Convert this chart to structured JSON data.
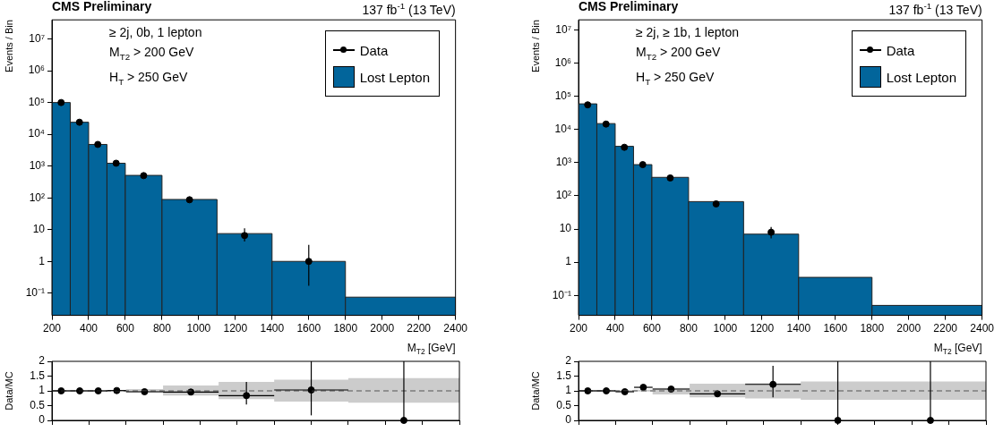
{
  "chart_data": [
    {
      "type": "histogram",
      "title": "CMS Preliminary",
      "subtitle": "137 fb$^{-1}$ (13 TeV)",
      "xlabel": "M$_{T2}$ [GeV]",
      "ylabel": "Events / Bin",
      "annotations": [
        "≥ 2j, 0b, 1 lepton",
        "M$_{T2}$ > 200 GeV",
        "H$_{T}$ > 250 GeV"
      ],
      "log": "y",
      "legend": "top right",
      "xlim": [
        200,
        2400
      ],
      "xticks": [
        200,
        400,
        600,
        800,
        1000,
        1200,
        1400,
        1600,
        1800,
        2000,
        2200,
        2400
      ],
      "ylim": [
        0.02,
        40000000
      ],
      "yticks": [
        {
          "value": 0.1,
          "label": "10⁻¹"
        },
        1,
        10,
        {
          "value": 100,
          "label": "10²"
        },
        {
          "value": 1000,
          "label": "10³"
        },
        {
          "value": 10000,
          "label": "10⁴"
        },
        {
          "value": 100000,
          "label": "10⁵"
        },
        {
          "value": 1000000,
          "label": "10⁶"
        },
        {
          "value": 10000000,
          "label": "10⁷"
        }
      ],
      "series": [
        {
          "type": "scatter",
          "marker": "circle",
          "name": "Data",
          "color": "#000000",
          "x": [
            250,
            350,
            450,
            550,
            700,
            950,
            1250,
            1600
          ],
          "values": [
            100000,
            24000,
            4800,
            1230,
            500,
            87,
            6.5,
            1.0
          ],
          "errors": [
            null,
            null,
            null,
            null,
            null,
            null,
            [
              4.2,
              11
            ],
            [
              0.17,
              3.3
            ]
          ]
        },
        {
          "name": "Lost Lepton",
          "color": "#02659b",
          "bins": [
            200,
            300,
            400,
            500,
            600,
            800,
            1100,
            1400,
            1800,
            2400
          ],
          "values": [
            100000,
            24000,
            4800,
            1230,
            510,
            89,
            7.5,
            1.0,
            0.075
          ]
        }
      ]
    },
    {
      "type": "histogram",
      "title": "CMS Preliminary",
      "subtitle": "137 fb$^{-1}$ (13 TeV)",
      "xlabel": "M$_{T2}$ [GeV]",
      "ylabel": "Events / Bin",
      "annotations": [
        "≥ 2j, ≥ 1b, 1 lepton",
        "M$_{T2}$ > 200 GeV",
        "H$_{T}$ > 250 GeV"
      ],
      "log": "y",
      "legend": "top right",
      "xlim": [
        200,
        2400
      ],
      "xticks": [
        200,
        400,
        600,
        800,
        1000,
        1200,
        1400,
        1600,
        1800,
        2000,
        2200,
        2400
      ],
      "ylim": [
        0.025,
        20000000
      ],
      "yticks": [
        {
          "value": 0.1,
          "label": "10⁻¹"
        },
        1,
        10,
        {
          "value": 100,
          "label": "10²"
        },
        {
          "value": 1000,
          "label": "10³"
        },
        {
          "value": 10000,
          "label": "10⁴"
        },
        {
          "value": 100000,
          "label": "10⁵"
        },
        {
          "value": 1000000,
          "label": "10⁶"
        },
        {
          "value": 10000000,
          "label": "10⁷"
        }
      ],
      "series": [
        {
          "type": "scatter",
          "marker": "circle",
          "name": "Data",
          "color": "#000000",
          "x": [
            250,
            350,
            450,
            550,
            700,
            950,
            1250
          ],
          "values": [
            55000,
            14500,
            2900,
            870,
            345,
            57,
            8
          ],
          "errors": [
            null,
            null,
            null,
            null,
            null,
            null,
            [
              5.2,
              11.5
            ]
          ]
        },
        {
          "name": "Lost Lepton",
          "color": "#02659b",
          "bins": [
            200,
            300,
            400,
            500,
            600,
            800,
            1100,
            1400,
            1800,
            2400
          ],
          "values": [
            59000,
            15000,
            3100,
            870,
            360,
            67,
            7,
            0.35,
            0.05
          ]
        }
      ]
    },
    {
      "type": "scatter",
      "ylabel": "Data/MC",
      "tick_labels": "y",
      "xlim": [
        200,
        2400
      ],
      "xticks": [
        200,
        400,
        600,
        800,
        1000,
        1200,
        1400,
        1600,
        1800,
        2000,
        2200,
        2400
      ],
      "ylim": [
        0,
        2
      ],
      "yticks": [
        0,
        0.5,
        1,
        1.5,
        2
      ],
      "series": [
        {
          "type": "step",
          "marker": "none",
          "color": "#555555",
          "line_style": "dashed",
          "x": [
            200,
            300,
            400,
            500,
            600,
            800,
            1100,
            1400,
            1800,
            2400
          ],
          "values": [
            1,
            1,
            1,
            1,
            1,
            1,
            1,
            1,
            1,
            1
          ],
          "lower": [
            0.98,
            0.98,
            0.98,
            0.98,
            0.94,
            0.84,
            0.72,
            0.64,
            0.6,
            0.6
          ],
          "upper": [
            1.02,
            1.02,
            1.02,
            1.02,
            1.06,
            1.18,
            1.3,
            1.38,
            1.43,
            1.43
          ]
        },
        {
          "marker": "circle",
          "color": "#000000",
          "x": [
            250,
            350,
            450,
            550,
            700,
            950,
            1250,
            1600,
            2100
          ],
          "values": [
            1.0,
            1.0,
            1.0,
            1.01,
            0.97,
            0.96,
            0.84,
            1.03,
            0
          ],
          "errors": [
            null,
            null,
            null,
            null,
            null,
            null,
            [
              0.54,
              1.3
            ],
            [
              0.17,
              2
            ],
            [
              0,
              2
            ]
          ],
          "xerrors": [
            [
              200,
              300
            ],
            [
              300,
              400
            ],
            [
              400,
              500
            ],
            [
              500,
              600
            ],
            [
              600,
              800
            ],
            [
              800,
              1100
            ],
            [
              1100,
              1400
            ],
            [
              1400,
              1800
            ],
            null
          ]
        }
      ]
    },
    {
      "type": "scatter",
      "ylabel": "Data/MC",
      "tick_labels": "y",
      "xlim": [
        200,
        2400
      ],
      "xticks": [
        200,
        400,
        600,
        800,
        1000,
        1200,
        1400,
        1600,
        1800,
        2000,
        2200,
        2400
      ],
      "ylim": [
        0,
        2
      ],
      "yticks": [
        0,
        0.5,
        1,
        1.5,
        2
      ],
      "series": [
        {
          "type": "step",
          "marker": "none",
          "color": "#555555",
          "line_style": "dashed",
          "x": [
            200,
            300,
            400,
            500,
            600,
            800,
            1100,
            1400,
            1800,
            2400
          ],
          "values": [
            1,
            1,
            1,
            1,
            1,
            1,
            1,
            1,
            1,
            1
          ],
          "lower": [
            0.98,
            0.98,
            0.98,
            0.98,
            0.88,
            0.78,
            0.74,
            0.7,
            0.7,
            0.7
          ],
          "upper": [
            1.02,
            1.02,
            1.02,
            1.04,
            1.1,
            1.24,
            1.26,
            1.32,
            1.32,
            1.32
          ]
        },
        {
          "marker": "circle",
          "color": "#000000",
          "x": [
            250,
            350,
            450,
            550,
            700,
            950,
            1250,
            1600,
            2100
          ],
          "values": [
            1.0,
            1.0,
            0.97,
            1.12,
            1.06,
            0.9,
            1.22,
            0,
            0
          ],
          "errors": [
            null,
            null,
            null,
            null,
            null,
            null,
            [
              0.78,
              1.85
            ],
            [
              0,
              2
            ],
            [
              0,
              2
            ]
          ],
          "xerrors": [
            [
              200,
              300
            ],
            [
              300,
              400
            ],
            [
              400,
              500
            ],
            [
              500,
              600
            ],
            [
              600,
              800
            ],
            [
              800,
              1100
            ],
            [
              1100,
              1400
            ],
            null,
            null
          ]
        }
      ]
    }
  ]
}
